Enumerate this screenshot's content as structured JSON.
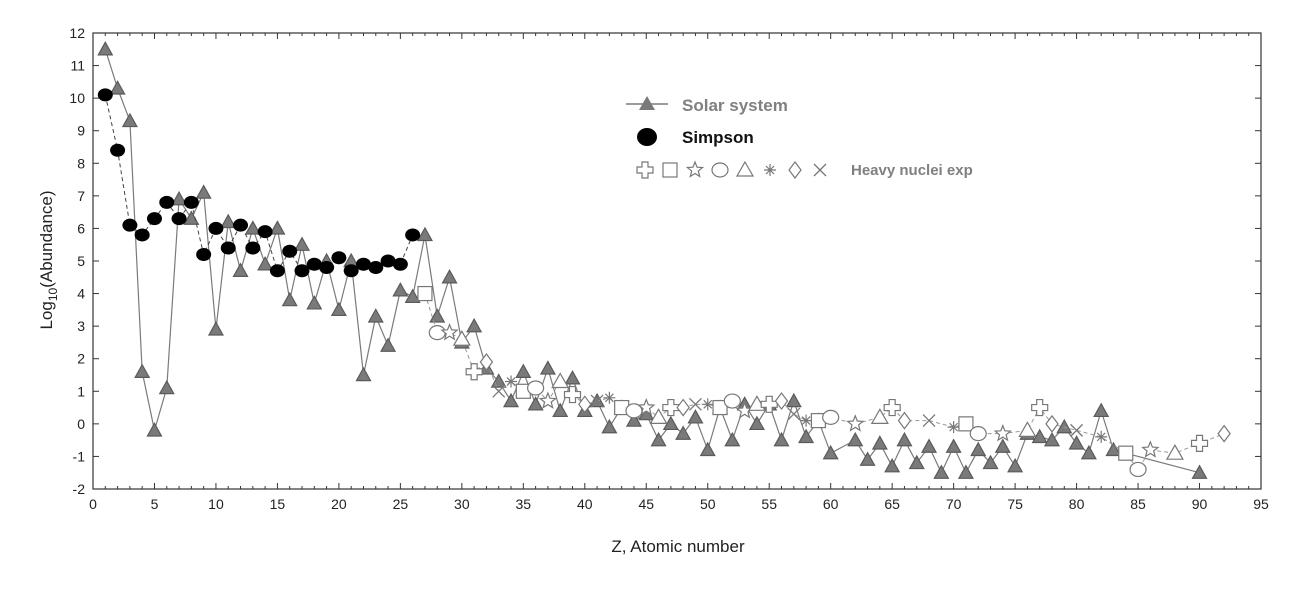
{
  "chart_data": {
    "type": "scatter",
    "xlabel": "Z, Atomic number",
    "ylabel_main": "Log",
    "ylabel_sub": "10",
    "ylabel_rest": "(Abundance)",
    "xlim": [
      0,
      95
    ],
    "ylim": [
      -2,
      12
    ],
    "x_ticks": [
      0,
      5,
      10,
      15,
      20,
      25,
      30,
      35,
      40,
      45,
      50,
      55,
      60,
      65,
      70,
      75,
      80,
      85,
      90,
      95
    ],
    "y_ticks": [
      -2,
      -1,
      0,
      1,
      2,
      3,
      4,
      5,
      6,
      7,
      8,
      9,
      10,
      11,
      12
    ],
    "grid": false,
    "legend_position": "top-center",
    "legend": {
      "solar": "Solar  system",
      "simpson": "Simpson",
      "heavy": "Heavy nuclei exp",
      "heavy_symbols": [
        "plus-icon",
        "square-icon",
        "star-icon",
        "circle-icon",
        "triangle-icon",
        "snowflake-icon",
        "diamond-icon",
        "x-icon"
      ]
    },
    "colors": {
      "solar": "#7a7a7a",
      "simpson": "#000000",
      "heavy": "#7a7a7a",
      "legend_solar_text": "#808080",
      "legend_heavy_text": "#808080"
    },
    "series": [
      {
        "name": "Solar  system",
        "marker": "triangle",
        "x": [
          1,
          2,
          3,
          4,
          5,
          6,
          7,
          8,
          9,
          10,
          11,
          12,
          13,
          14,
          15,
          16,
          17,
          18,
          19,
          20,
          21,
          22,
          23,
          24,
          25,
          26,
          27,
          28,
          29,
          30,
          31,
          32,
          33,
          34,
          35,
          36,
          37,
          38,
          39,
          40,
          41,
          42,
          43,
          44,
          45,
          46,
          47,
          48,
          49,
          50,
          51,
          52,
          53,
          54,
          55,
          56,
          57,
          58,
          59,
          60,
          62,
          63,
          64,
          65,
          66,
          67,
          68,
          69,
          70,
          71,
          72,
          73,
          74,
          75,
          76,
          77,
          78,
          79,
          80,
          81,
          82,
          83,
          90
        ],
        "values": [
          11.5,
          10.3,
          9.3,
          1.6,
          -0.2,
          1.1,
          6.9,
          6.3,
          7.1,
          2.9,
          6.2,
          4.7,
          6.0,
          4.9,
          6.0,
          3.8,
          5.5,
          3.7,
          5.0,
          3.5,
          5.0,
          1.5,
          3.3,
          2.4,
          4.1,
          3.9,
          5.8,
          3.3,
          4.5,
          2.5,
          3.0,
          1.7,
          1.3,
          0.7,
          1.6,
          0.6,
          1.7,
          0.4,
          1.4,
          0.4,
          0.7,
          -0.1,
          0.5,
          0.1,
          0.3,
          -0.5,
          0.0,
          -0.3,
          0.2,
          -0.8,
          0.5,
          -0.5,
          0.6,
          0.0,
          0.6,
          -0.5,
          0.7,
          -0.4,
          0.1,
          -0.9,
          -0.5,
          -1.1,
          -0.6,
          -1.3,
          -0.5,
          -1.2,
          -0.7,
          -1.5,
          -0.7,
          -1.5,
          -0.8,
          -1.2,
          -0.7,
          -1.3,
          -0.3,
          -0.4,
          -0.5,
          -0.1,
          -0.6,
          -0.9,
          0.4,
          -0.8,
          -1.5
        ]
      },
      {
        "name": "Simpson",
        "marker": "filled-ellipse",
        "x": [
          1,
          2,
          3,
          4,
          5,
          6,
          7,
          8,
          9,
          10,
          11,
          12,
          13,
          14,
          15,
          16,
          17,
          18,
          19,
          20,
          21,
          22,
          23,
          24,
          25,
          26
        ],
        "values": [
          10.1,
          8.4,
          6.1,
          5.8,
          6.3,
          6.8,
          6.3,
          6.8,
          5.2,
          6.0,
          5.4,
          6.1,
          5.4,
          5.9,
          4.7,
          5.3,
          4.7,
          4.9,
          4.8,
          5.1,
          4.7,
          4.9,
          4.8,
          5.0,
          4.9,
          5.8
        ]
      },
      {
        "name": "Heavy nuclei exp",
        "marker": "open-mixed",
        "x": [
          27,
          28,
          29,
          30,
          31,
          32,
          33,
          34,
          35,
          36,
          37,
          38,
          39,
          40,
          41,
          42,
          43,
          44,
          45,
          46,
          47,
          48,
          49,
          50,
          51,
          52,
          53,
          54,
          55,
          56,
          57,
          58,
          59,
          60,
          62,
          64,
          65,
          66,
          68,
          70,
          71,
          72,
          74,
          76,
          77,
          78,
          80,
          82,
          84,
          85,
          86,
          88,
          90,
          92
        ],
        "values": [
          4.0,
          2.8,
          2.8,
          2.6,
          1.6,
          1.9,
          1.0,
          1.3,
          1.0,
          1.1,
          0.7,
          1.3,
          0.9,
          0.6,
          0.7,
          0.8,
          0.5,
          0.4,
          0.5,
          0.2,
          0.5,
          0.5,
          0.6,
          0.6,
          0.5,
          0.7,
          0.4,
          0.6,
          0.6,
          0.7,
          0.3,
          0.1,
          0.1,
          0.2,
          0.0,
          0.2,
          0.5,
          0.1,
          0.1,
          -0.1,
          0.0,
          -0.3,
          -0.3,
          -0.2,
          0.5,
          0.0,
          -0.2,
          -0.4,
          -0.9,
          -1.4,
          -0.8,
          -0.9,
          -0.6,
          -0.3
        ]
      }
    ]
  }
}
